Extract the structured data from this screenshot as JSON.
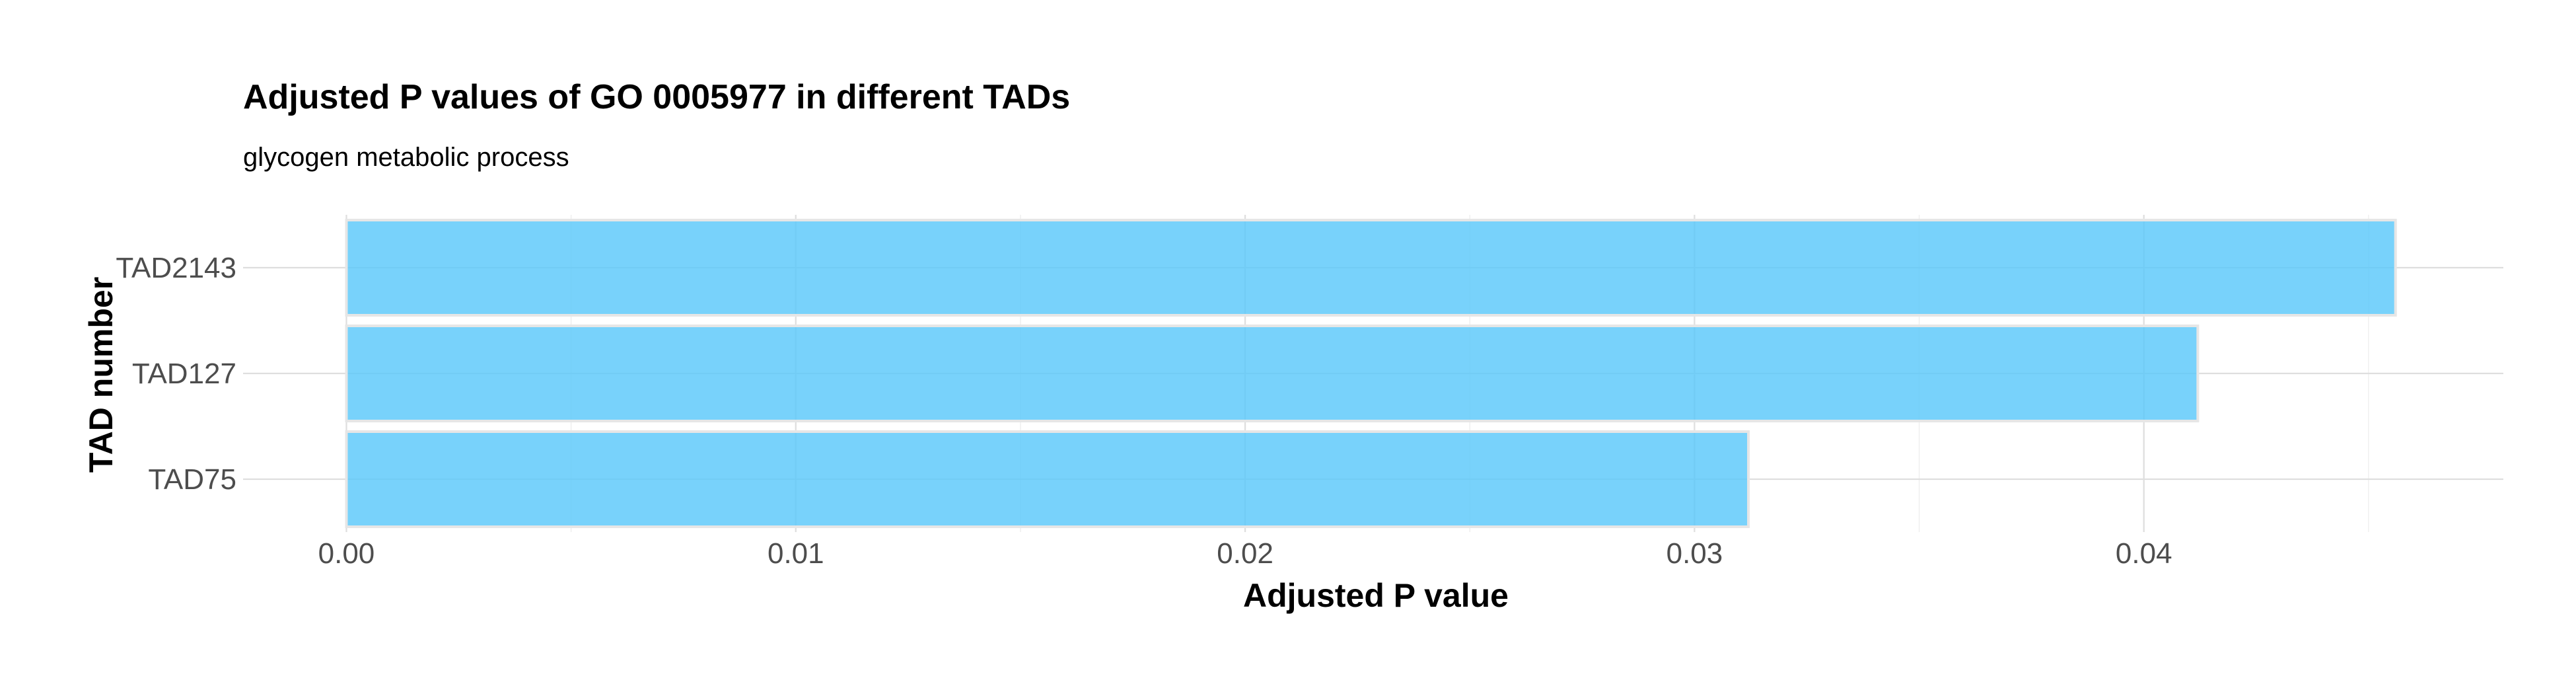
{
  "chart_data": {
    "type": "bar",
    "orientation": "horizontal",
    "title": "Adjusted P values of GO 0005977 in different TADs",
    "subtitle": "glycogen metabolic process",
    "xlabel": "Adjusted P value",
    "ylabel": "TAD number",
    "categories": [
      "TAD2143",
      "TAD127",
      "TAD75"
    ],
    "values": [
      0.0456,
      0.0412,
      0.0312
    ],
    "xlim": [
      -0.0023,
      0.048
    ],
    "x_ticks": [
      0.0,
      0.01,
      0.02,
      0.03,
      0.04
    ],
    "x_tick_labels": [
      "0.00",
      "0.01",
      "0.02",
      "0.03",
      "0.04"
    ],
    "x_minor_ticks": [
      0.005,
      0.015,
      0.025,
      0.035,
      0.045
    ],
    "grid": true,
    "legend": "none",
    "bar_color": "#5ac8fa",
    "bar_outline_color": "#e6e6e6"
  }
}
